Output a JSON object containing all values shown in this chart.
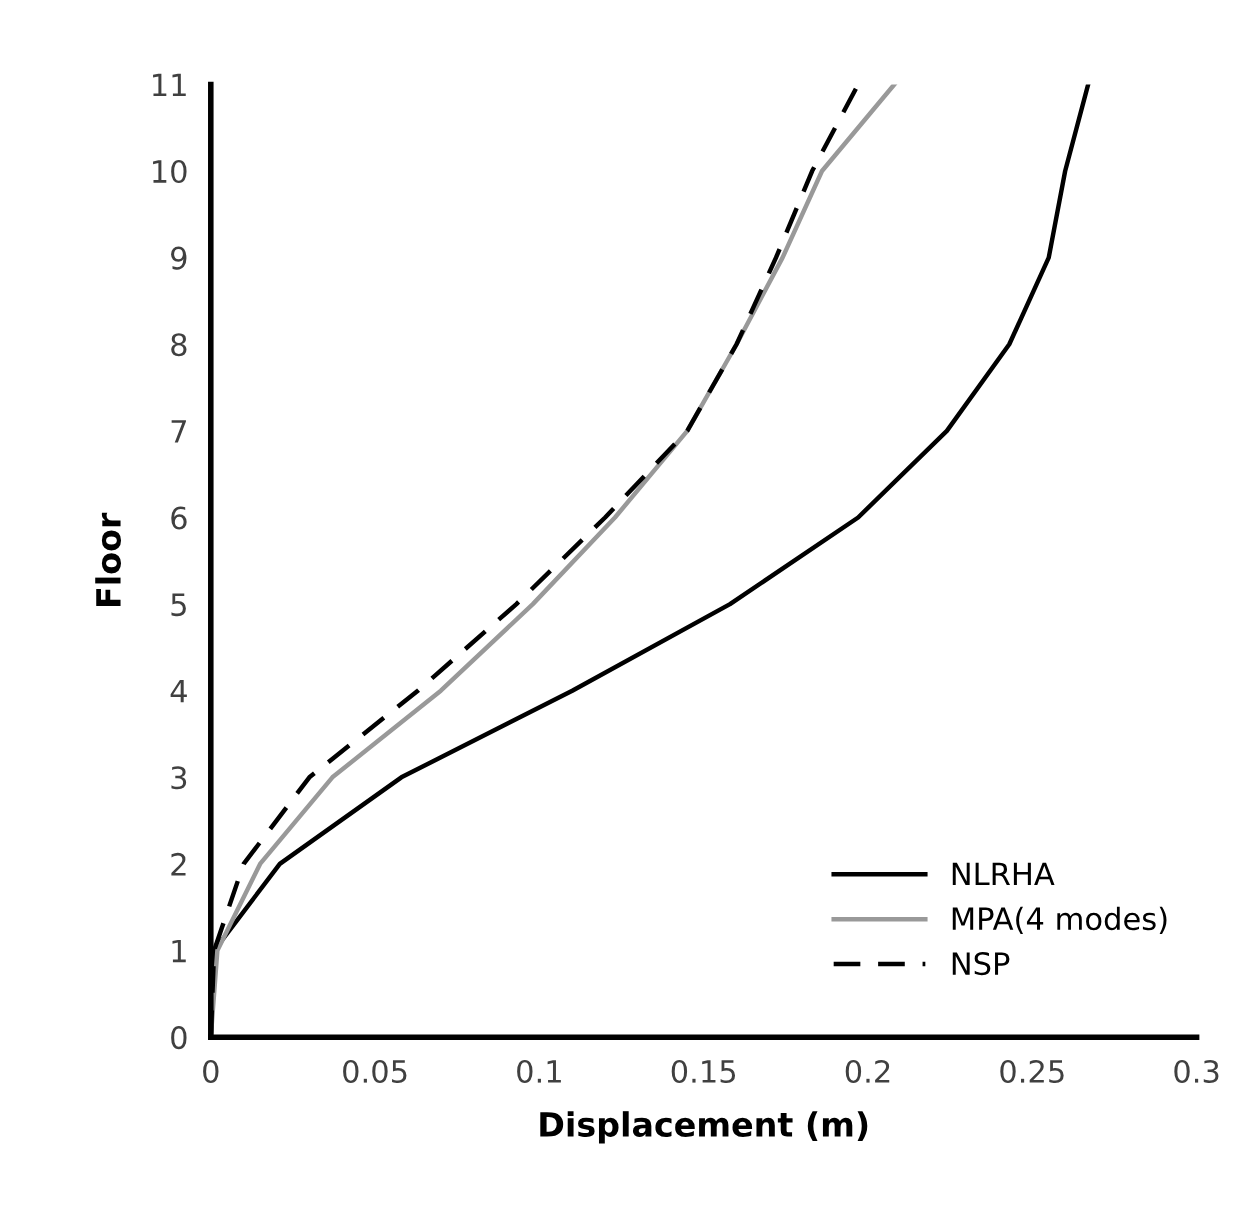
{
  "chart_data": {
    "type": "line",
    "xlabel": "Displacement (m)",
    "ylabel": "Floor",
    "xlim": [
      0,
      0.3
    ],
    "xticks": [
      0,
      0.05,
      0.1,
      0.15,
      0.2,
      0.25,
      0.3
    ],
    "ylim": [
      0,
      11
    ],
    "yticks": [
      0,
      1,
      2,
      3,
      4,
      5,
      6,
      7,
      8,
      9,
      10,
      11
    ],
    "grid": false,
    "legend": "bottom right",
    "series": [
      {
        "name": "NLRHA",
        "color": "#000000",
        "line_style": "solid",
        "x": [
          0,
          0.001,
          0.021,
          0.058,
          0.11,
          0.158,
          0.197,
          0.224,
          0.243,
          0.255,
          0.26,
          0.267
        ],
        "values": [
          0,
          1,
          2,
          3,
          4,
          5,
          6,
          7,
          8,
          9,
          10,
          11
        ]
      },
      {
        "name": "MPA(4 modes)",
        "color": "#999999",
        "line_style": "solid",
        "x": [
          0,
          0.002,
          0.015,
          0.037,
          0.07,
          0.098,
          0.123,
          0.145,
          0.16,
          0.174,
          0.186,
          0.208
        ],
        "values": [
          0,
          1,
          2,
          3,
          4,
          5,
          6,
          7,
          8,
          9,
          10,
          11
        ]
      },
      {
        "name": "NSP",
        "color": "#000000",
        "line_style": "dashed",
        "x": [
          0,
          0.001,
          0.01,
          0.03,
          0.063,
          0.093,
          0.12,
          0.145,
          0.16,
          0.172,
          0.183,
          0.197
        ],
        "values": [
          0,
          1,
          2,
          3,
          4,
          5,
          6,
          7,
          8,
          9,
          10,
          11
        ]
      }
    ]
  }
}
